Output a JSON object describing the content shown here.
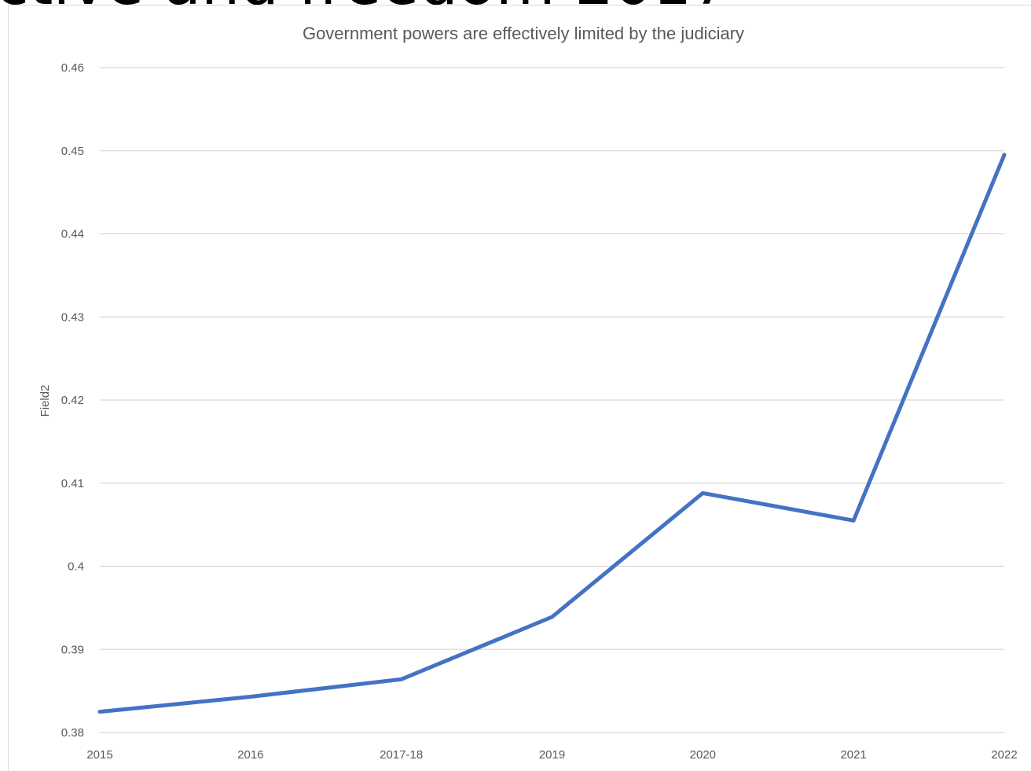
{
  "header": {
    "clipped_heading": "ctive and freedom 2017"
  },
  "chart_data": {
    "type": "line",
    "title": "Government powers are effectively limited by the judiciary",
    "xlabel": "",
    "ylabel": "Field2",
    "categories": [
      "2015",
      "2016",
      "2017-18",
      "2019",
      "2020",
      "2021",
      "2022"
    ],
    "series": [
      {
        "values": [
          0.3825,
          0.3843,
          0.3864,
          0.3939,
          0.4088,
          0.4055,
          0.4495
        ],
        "color": "#4472c4"
      }
    ],
    "ylim": [
      0.38,
      0.46
    ],
    "yticks": [
      "0.46",
      "0.45",
      "0.44",
      "0.43",
      "0.42",
      "0.41",
      "0.4",
      "0.39",
      "0.38"
    ],
    "grid": true,
    "legend": "none"
  }
}
